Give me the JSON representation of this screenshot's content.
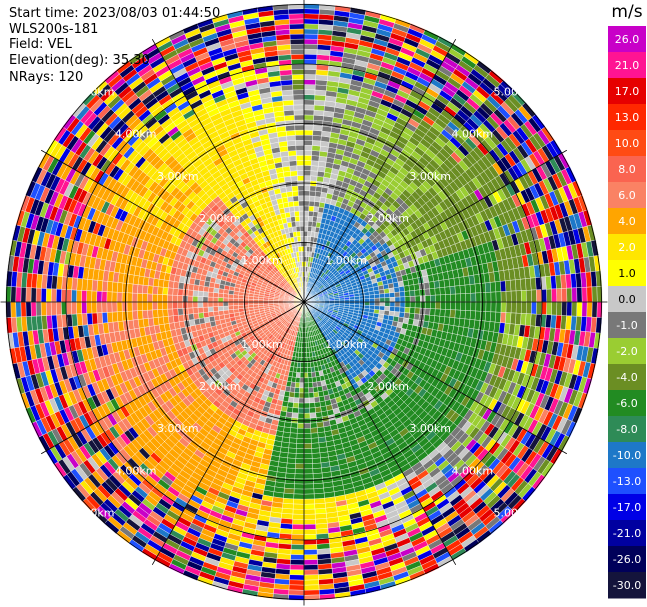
{
  "header": {
    "start_time": "Start time: 2023/08/03 01:44:50",
    "instrument": "WLS200s-181",
    "field": "Field: VEL",
    "elevation": "Elevation(deg): 35.30",
    "nrays": "NRays: 120"
  },
  "chart_data": {
    "type": "heatmap",
    "projection": "polar-ppi",
    "field": "VEL",
    "units": "m/s",
    "n_rays": 120,
    "range_rings_km": [
      1,
      2,
      3,
      4,
      5
    ],
    "range_ring_labels": [
      "1.00km",
      "2.00km",
      "3.00km",
      "4.00km",
      "5.00km"
    ],
    "max_range_km": 5.1,
    "colorbar": {
      "unit_label": "m/s",
      "range": [
        -30,
        30
      ],
      "tick_labels": [
        "26.0",
        "21.0",
        "17.0",
        "13.0",
        "10.0",
        "8.0",
        "6.0",
        "4.0",
        "2.0",
        "1.0",
        "0.0",
        "-1.0",
        "-2.0",
        "-4.0",
        "-6.0",
        "-8.0",
        "-10.0",
        "-13.0",
        "-17.0",
        "-21.0",
        "-26.0",
        "-30.0"
      ],
      "colors": [
        "#c800c8",
        "#ff1493",
        "#e60000",
        "#ff2800",
        "#ff4b14",
        "#fa6450",
        "#fa8264",
        "#ffa500",
        "#ffe600",
        "#ffff00",
        "#c8c8c8",
        "#787878",
        "#9acd32",
        "#6b8e23",
        "#228b22",
        "#2e8b57",
        "#1e78c8",
        "#1e50ff",
        "#0000e6",
        "#0000a0",
        "#00005a",
        "#14143c"
      ]
    }
  }
}
